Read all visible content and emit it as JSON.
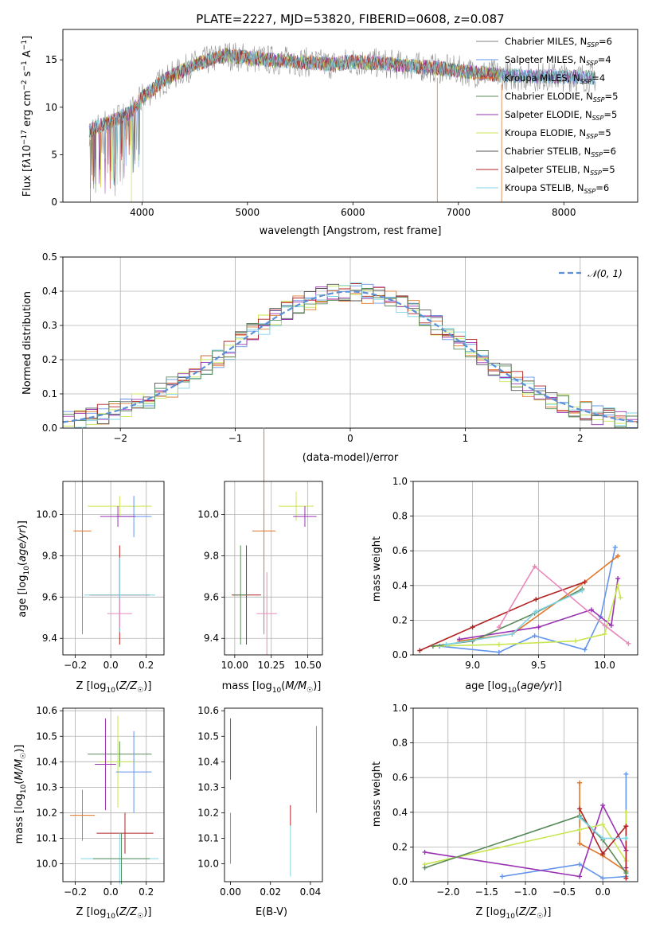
{
  "figure_title": "PLATE=2227, MJD=53820, FIBERID=0608, z=0.087",
  "colors": {
    "chabrier_miles": "#808080",
    "salpeter_miles": "#6495ed",
    "kroupa_miles": "#e0772a",
    "chabrier_elodie": "#5a8a5a",
    "salpeter_elodie": "#9a32b4",
    "kroupa_elodie": "#c8e650",
    "chabrier_stelib": "#555555",
    "salpeter_stelib": "#b22222",
    "kroupa_stelib": "#7fd4e4",
    "pink": "#e888bb",
    "gaussian": "#5b8fd6"
  },
  "chart_data": [
    {
      "type": "line",
      "title": "PLATE=2227, MJD=53820, FIBERID=0608, z=0.087",
      "xlabel": "wavelength [Angstrom, rest frame]",
      "ylabel": "Flux [fλ10⁻¹⁷ erg cm⁻² s⁻¹ A⁻¹]",
      "xlim": [
        3250,
        8700
      ],
      "ylim": [
        0,
        18.2
      ],
      "xticks": [
        4000,
        5000,
        6000,
        7000,
        8000
      ],
      "yticks": [
        0,
        5,
        10,
        15
      ],
      "grid": false,
      "legend_position": "right",
      "legend": [
        "Chabrier MILES, NSSP=6",
        "Salpeter MILES, NSSP=4",
        "Kroupa MILES, NSSP=4",
        "Chabrier ELODIE, NSSP=5",
        "Salpeter ELODIE, NSSP=5",
        "Kroupa ELODIE, NSSP=5",
        "Chabrier STELIB, NSSP=6",
        "Salpeter STELIB, NSSP=5",
        "Kroupa STELIB, NSSP=6"
      ],
      "continuum": {
        "x": [
          3500,
          3700,
          3900,
          4000,
          4200,
          4500,
          4800,
          5000,
          5200,
          5500,
          5800,
          6000,
          6300,
          6600,
          6900,
          7200,
          7500,
          8000,
          8300
        ],
        "y": [
          7.5,
          8.5,
          9.5,
          11.0,
          12.8,
          14.5,
          15.5,
          15.2,
          15.0,
          14.8,
          14.5,
          14.8,
          14.6,
          14.3,
          14.0,
          13.6,
          13.3,
          13.2,
          13.1
        ]
      }
    },
    {
      "type": "histogram",
      "xlabel": "(data-model)/error",
      "ylabel": "Normed distribution",
      "xlim": [
        -2.5,
        2.5
      ],
      "ylim": [
        0,
        0.5
      ],
      "xticks": [
        -2,
        -1,
        0,
        1,
        2
      ],
      "yticks": [
        0.0,
        0.1,
        0.2,
        0.3,
        0.4,
        0.5
      ],
      "grid": true,
      "legend": [
        "𝒩(0, 1)"
      ],
      "legend_position": "top-right",
      "gaussian": {
        "mean": 0,
        "sigma": 1
      }
    },
    {
      "type": "errorbar",
      "xlabel": "Z [log₁₀(Z/Z☉)]",
      "ylabel": "age  [log₁₀(age/yr)]",
      "xlim": [
        -0.27,
        0.3
      ],
      "ylim": [
        9.32,
        10.16
      ],
      "xticks": [
        -0.2,
        0.0,
        0.2
      ],
      "yticks": [
        9.4,
        9.6,
        9.8,
        10.0
      ],
      "grid": true
    },
    {
      "type": "errorbar",
      "xlabel": "mass [log₁₀(M/M☉)]",
      "xlim": [
        9.93,
        10.6
      ],
      "ylim": [
        9.32,
        10.16
      ],
      "xticks": [
        10.0,
        10.25,
        10.5
      ],
      "yticks": [
        9.4,
        9.6,
        9.8,
        10.0
      ],
      "grid": true
    },
    {
      "type": "line",
      "xlabel": "age  [log₁₀(age/yr)]",
      "ylabel": "mass weight",
      "xlim": [
        8.55,
        10.25
      ],
      "ylim": [
        0,
        1
      ],
      "xticks": [
        9.0,
        9.5,
        10.0
      ],
      "yticks": [
        0.0,
        0.2,
        0.4,
        0.6,
        0.8,
        1.0
      ],
      "grid": true,
      "series": [
        {
          "color": "salpeter_miles",
          "x": [
            8.75,
            9.2,
            9.47,
            9.85,
            9.97,
            10.08
          ],
          "y": [
            0.05,
            0.015,
            0.11,
            0.03,
            0.22,
            0.62
          ]
        },
        {
          "color": "kroupa_miles",
          "x": [
            8.9,
            9.3,
            9.85,
            10.1
          ],
          "y": [
            0.08,
            0.12,
            0.42,
            0.57
          ]
        },
        {
          "color": "salpeter_elodie",
          "x": [
            8.9,
            9.5,
            9.9,
            10.05,
            10.1
          ],
          "y": [
            0.09,
            0.16,
            0.26,
            0.17,
            0.44
          ]
        },
        {
          "color": "kroupa_elodie",
          "x": [
            8.7,
            9.2,
            9.78,
            10.0,
            10.1,
            10.12
          ],
          "y": [
            0.05,
            0.06,
            0.08,
            0.12,
            0.4,
            0.33
          ]
        },
        {
          "color": "salpeter_stelib",
          "x": [
            8.6,
            9.0,
            9.48,
            9.85
          ],
          "y": [
            0.025,
            0.16,
            0.32,
            0.42
          ]
        },
        {
          "color": "chabrier_elodie",
          "x": [
            8.7,
            9.0,
            9.47,
            9.83
          ],
          "y": [
            0.05,
            0.08,
            0.24,
            0.38
          ]
        },
        {
          "color": "kroupa_stelib",
          "x": [
            8.8,
            9.3,
            9.48,
            9.83
          ],
          "y": [
            0.06,
            0.12,
            0.25,
            0.37
          ]
        },
        {
          "color": "pink",
          "x": [
            9.2,
            9.47,
            10.0,
            10.18
          ],
          "y": [
            0.16,
            0.51,
            0.17,
            0.065
          ]
        }
      ]
    },
    {
      "type": "errorbar",
      "xlabel": "Z [log₁₀(Z/Z☉)]",
      "ylabel": "mass [log₁₀(M/M☉)]",
      "xlim": [
        -0.27,
        0.3
      ],
      "ylim": [
        9.93,
        10.61
      ],
      "xticks": [
        -0.2,
        0.0,
        0.2
      ],
      "yticks": [
        10.0,
        10.1,
        10.2,
        10.3,
        10.4,
        10.5,
        10.6
      ],
      "grid": true
    },
    {
      "type": "errorbar",
      "xlabel": "E(B-V)",
      "xlim": [
        -0.003,
        0.046
      ],
      "ylim": [
        9.93,
        10.61
      ],
      "xticks": [
        0.0,
        0.02,
        0.04
      ],
      "yticks": [
        10.0,
        10.1,
        10.2,
        10.3,
        10.4,
        10.5,
        10.6
      ],
      "grid": false
    },
    {
      "type": "line",
      "xlabel": "Z [log₁₀(Z/Z☉)]",
      "ylabel": "mass weight",
      "xlim": [
        -2.45,
        0.45
      ],
      "ylim": [
        0,
        1
      ],
      "xticks": [
        -2.0,
        -1.5,
        -1.0,
        -0.5,
        0.0
      ],
      "yticks": [
        0.0,
        0.2,
        0.4,
        0.6,
        0.8,
        1.0
      ],
      "grid": true,
      "series": [
        {
          "color": "salpeter_miles",
          "x": [
            -1.3,
            -0.3,
            0.0,
            0.3,
            0.3
          ],
          "y": [
            0.03,
            0.1,
            0.02,
            0.03,
            0.62
          ]
        },
        {
          "color": "kroupa_miles",
          "x": [
            -0.3,
            -0.3,
            0.0,
            0.3
          ],
          "y": [
            0.57,
            0.22,
            0.15,
            0.06
          ]
        },
        {
          "color": "salpeter_elodie",
          "x": [
            -2.3,
            -0.3,
            0.0,
            0.3,
            0.3
          ],
          "y": [
            0.17,
            0.03,
            0.44,
            0.18,
            0.08
          ]
        },
        {
          "color": "kroupa_elodie",
          "x": [
            -2.3,
            -0.3,
            0.0,
            0.3,
            0.3
          ],
          "y": [
            0.1,
            0.3,
            0.33,
            0.12,
            0.4
          ]
        },
        {
          "color": "salpeter_stelib",
          "x": [
            -0.3,
            0.0,
            0.3,
            0.3
          ],
          "y": [
            0.42,
            0.16,
            0.32,
            0.02
          ]
        },
        {
          "color": "chabrier_elodie",
          "x": [
            -2.3,
            -0.3,
            0.0,
            0.3
          ],
          "y": [
            0.08,
            0.38,
            0.24,
            0.05
          ]
        },
        {
          "color": "kroupa_stelib",
          "x": [
            -0.3,
            0.0,
            0.3
          ],
          "y": [
            0.37,
            0.25,
            0.25
          ]
        }
      ]
    }
  ]
}
